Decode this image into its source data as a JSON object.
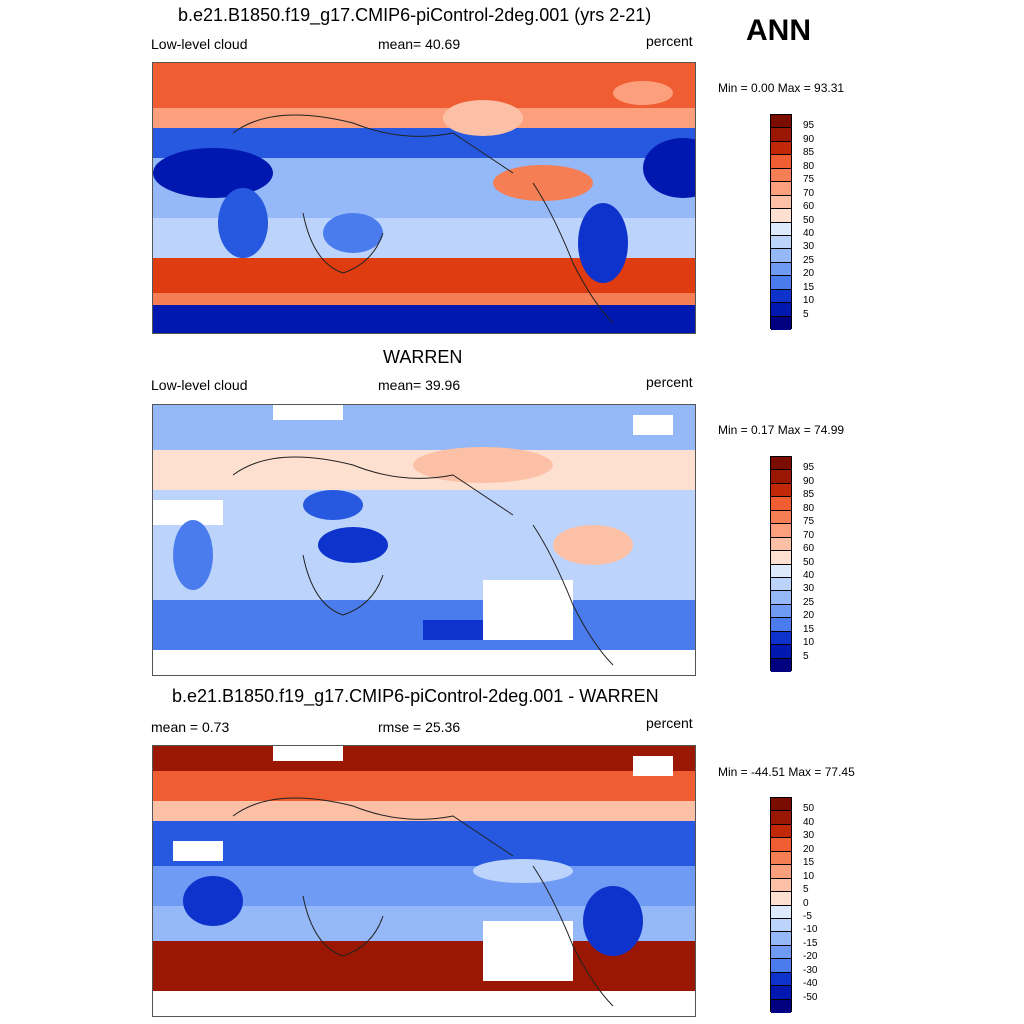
{
  "season": "ANN",
  "colors": {
    "seq": [
      "#000080",
      "#0018b0",
      "#0d33cc",
      "#2658e0",
      "#4a7cee",
      "#6f9bf4",
      "#95b8f8",
      "#bcd4fb",
      "#dde9fd",
      "#ffffff",
      "#fde0d0",
      "#fcc0a6",
      "#fb9f7c",
      "#f67e55",
      "#f05d32",
      "#e03c12",
      "#c02807",
      "#9a1803",
      "#7a0d00"
    ],
    "div": [
      "#000080",
      "#0018b0",
      "#0d33cc",
      "#2658e0",
      "#4a7cee",
      "#6f9bf4",
      "#95b8f8",
      "#bcd4fb",
      "#dde9fd",
      "#ffffff",
      "#fde0d0",
      "#fcc0a6",
      "#fb9f7c",
      "#f67e55",
      "#f05d32",
      "#e03c12",
      "#c02807",
      "#9a1803",
      "#7a0d00"
    ]
  },
  "panels": [
    {
      "title": "b.e21.B1850.f19_g17.CMIP6-piControl-2deg.001 (yrs 2-21)",
      "left_label": "Low-level cloud",
      "center_label": "mean=  40.69",
      "right_label": "percent",
      "minmax": "Min =   0.00 Max =  93.31",
      "colorbar": [
        "95",
        "90",
        "85",
        "80",
        "75",
        "70",
        "60",
        "50",
        "40",
        "30",
        "25",
        "20",
        "15",
        "10",
        "5"
      ]
    },
    {
      "title": "WARREN",
      "left_label": "Low-level cloud",
      "center_label": "mean=  39.96",
      "right_label": "percent",
      "minmax": "Min =   0.17 Max =  74.99",
      "colorbar": [
        "95",
        "90",
        "85",
        "80",
        "75",
        "70",
        "60",
        "50",
        "40",
        "30",
        "25",
        "20",
        "15",
        "10",
        "5"
      ]
    },
    {
      "title": "b.e21.B1850.f19_g17.CMIP6-piControl-2deg.001 - WARREN",
      "left_label": "mean =   0.73",
      "center_label": "rmse =  25.36",
      "right_label": "percent",
      "minmax": "Min = -44.51 Max =  77.45",
      "colorbar": [
        "50",
        "40",
        "30",
        "20",
        "15",
        "10",
        "5",
        "0",
        "-5",
        "-10",
        "-15",
        "-20",
        "-30",
        "-40",
        "-50"
      ]
    }
  ]
}
